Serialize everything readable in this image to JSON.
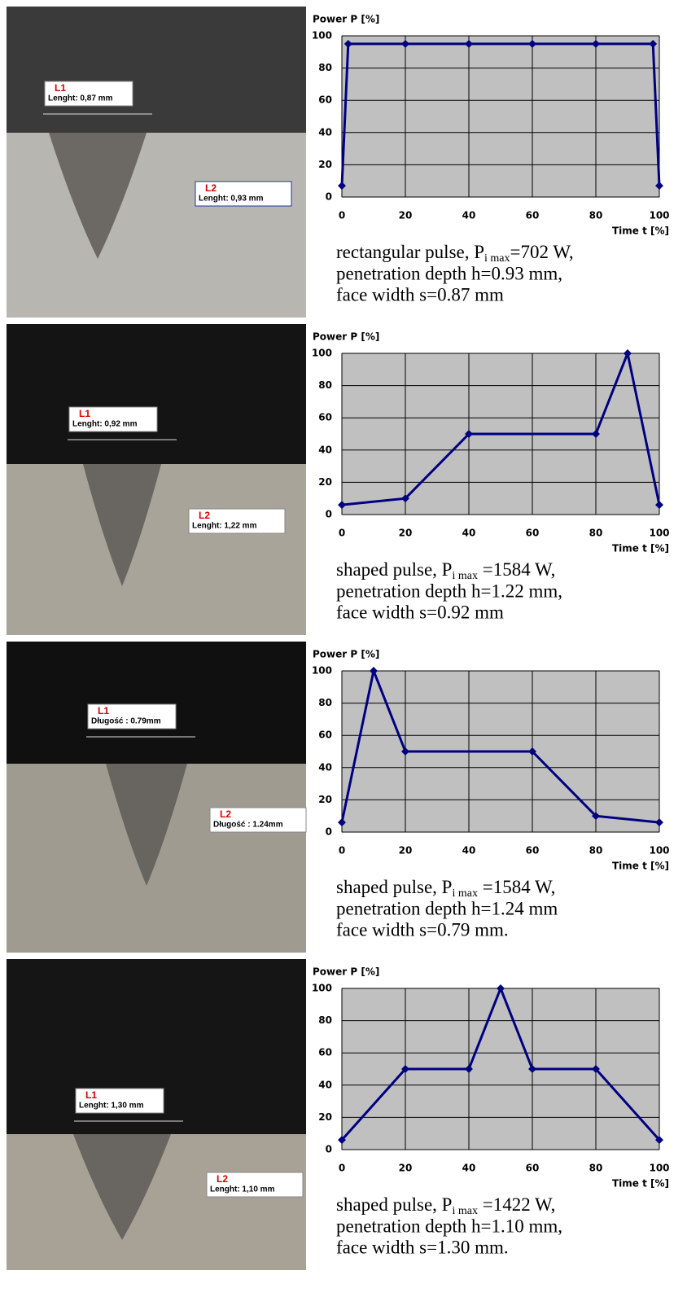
{
  "chart_data": [
    {
      "type": "line",
      "y_label": "Power P [%]",
      "x_label": "Time t [%]",
      "x": [
        0,
        2,
        20,
        40,
        60,
        80,
        98,
        100
      ],
      "values": [
        7,
        95,
        95,
        95,
        95,
        95,
        95,
        7
      ],
      "xlim": [
        0,
        100
      ],
      "ylim": [
        0,
        100
      ],
      "xticks": [
        0,
        20,
        40,
        60,
        80,
        100
      ],
      "yticks": [
        0,
        20,
        40,
        60,
        80,
        100
      ],
      "grid": true,
      "color": "#000080",
      "background": "#c0c0c0"
    },
    {
      "type": "line",
      "y_label": "Power P [%]",
      "x_label": "Time t [%]",
      "x": [
        0,
        20,
        40,
        80,
        90,
        100
      ],
      "values": [
        6,
        10,
        50,
        50,
        100,
        6
      ],
      "xlim": [
        0,
        100
      ],
      "ylim": [
        0,
        100
      ],
      "xticks": [
        0,
        20,
        40,
        60,
        80,
        100
      ],
      "yticks": [
        0,
        20,
        40,
        60,
        80,
        100
      ],
      "grid": true,
      "color": "#000080",
      "background": "#c0c0c0"
    },
    {
      "type": "line",
      "y_label": "Power P [%]",
      "x_label": "Time t [%]",
      "x": [
        0,
        10,
        20,
        60,
        80,
        100
      ],
      "values": [
        6,
        100,
        50,
        50,
        10,
        6
      ],
      "xlim": [
        0,
        100
      ],
      "ylim": [
        0,
        100
      ],
      "xticks": [
        0,
        20,
        40,
        60,
        80,
        100
      ],
      "yticks": [
        0,
        20,
        40,
        60,
        80,
        100
      ],
      "grid": true,
      "color": "#000080",
      "background": "#c0c0c0"
    },
    {
      "type": "line",
      "y_label": "Power P [%]",
      "x_label": "Time t [%]",
      "x": [
        0,
        20,
        40,
        50,
        60,
        80,
        100
      ],
      "values": [
        6,
        50,
        50,
        100,
        50,
        50,
        6
      ],
      "xlim": [
        0,
        100
      ],
      "ylim": [
        0,
        100
      ],
      "xticks": [
        0,
        20,
        40,
        60,
        80,
        100
      ],
      "yticks": [
        0,
        20,
        40,
        60,
        80,
        100
      ],
      "grid": true,
      "color": "#000080",
      "background": "#c0c0c0"
    }
  ],
  "panels": [
    {
      "L1": {
        "name": "L1",
        "text": "Lenght: 0,87 mm"
      },
      "L2": {
        "name": "L2",
        "text": "Lenght: 0,93 mm"
      },
      "caption": {
        "prefix": "rectangular pulse, P",
        "subscript": "i max",
        "suffix": "=702 W,",
        "lines": [
          "penetration depth h=0.93 mm,",
          "face width s=0.87 mm"
        ]
      }
    },
    {
      "L1": {
        "name": "L1",
        "text": "Lenght: 0,92 mm"
      },
      "L2": {
        "name": "L2",
        "text": "Lenght: 1,22 mm"
      },
      "caption": {
        "prefix": "shaped pulse, P",
        "subscript": "i max",
        "suffix": " =1584 W,",
        "lines": [
          "penetration depth  h=1.22 mm,",
          "face width s=0.92 mm"
        ]
      }
    },
    {
      "L1": {
        "name": "L1",
        "text": "Długość : 0.79mm"
      },
      "L2": {
        "name": "L2",
        "text": "Długość : 1.24mm"
      },
      "caption": {
        "prefix": "shaped pulse, P",
        "subscript": "i max",
        "suffix": " =1584 W,",
        "lines": [
          "penetration depth  h=1.24 mm",
          "face width s=0.79 mm."
        ]
      }
    },
    {
      "L1": {
        "name": "L1",
        "text": "Lenght: 1,30 mm"
      },
      "L2": {
        "name": "L2",
        "text": "Lenght: 1,10 mm"
      },
      "caption": {
        "prefix": "shaped pulse, P",
        "subscript": "i max",
        "suffix": " =1422 W,",
        "lines": [
          "penetration depth  h=1.10 mm,",
          "face width s=1.30 mm."
        ]
      }
    }
  ]
}
